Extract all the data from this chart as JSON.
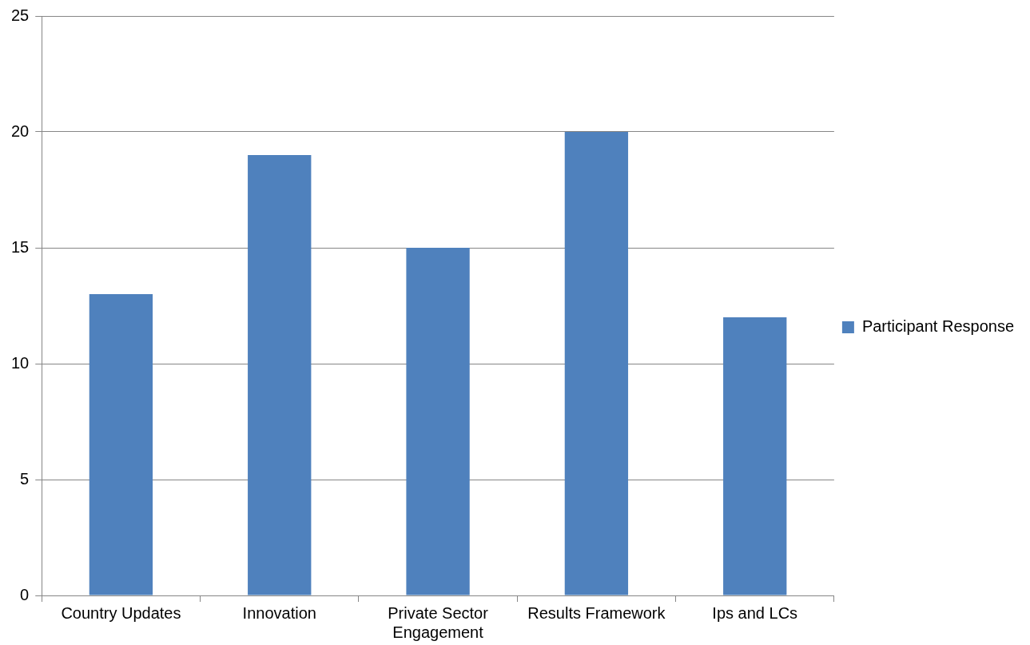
{
  "chart_data": {
    "type": "bar",
    "categories": [
      "Country Updates",
      "Innovation",
      "Private Sector Engagement",
      "Results Framework",
      "Ips and LCs"
    ],
    "series": [
      {
        "name": "Participant Response",
        "color": "#4f81bd",
        "values": [
          13,
          19,
          15,
          20,
          12
        ]
      }
    ],
    "ylim": [
      0,
      25
    ],
    "yticks": [
      0,
      5,
      10,
      15,
      20,
      25
    ],
    "grid": "y",
    "legend": "right"
  }
}
